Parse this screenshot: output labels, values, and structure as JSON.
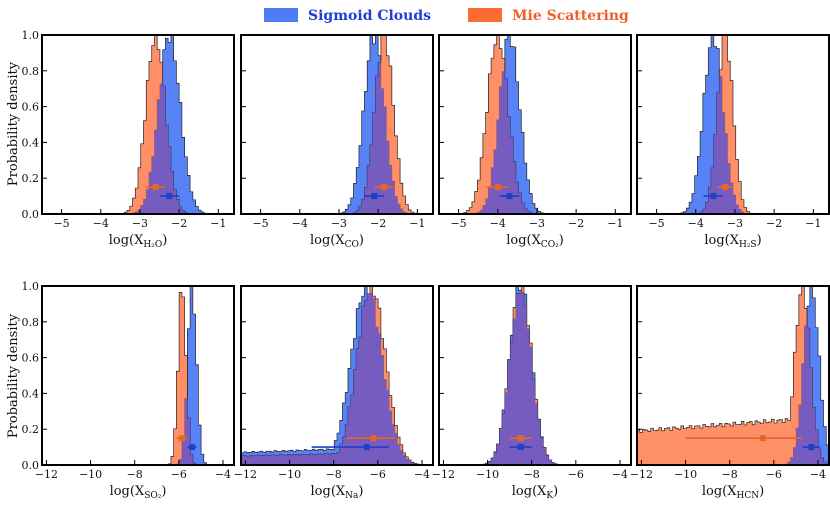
{
  "legend": {
    "sigmoid_label": "Sigmoid Clouds",
    "mie_label": "Mie Scattering",
    "sigmoid_color": "#4e7cf6",
    "mie_color": "#ff6a33",
    "sigmoid_marker_color": "#1f3fc8",
    "mie_marker_color": "#e8652a"
  },
  "ylabel": "Probability density",
  "chart_data": [
    {
      "type": "histogram",
      "row": 0,
      "col": 0,
      "xlabel_base": "log(X",
      "xlabel_sub": "H₂O",
      "xlabel_end": ")",
      "xlim": [
        -5.5,
        -0.6
      ],
      "xticks": [
        -5,
        -4,
        -3,
        -2,
        -1
      ],
      "ylim": [
        0,
        1.0
      ],
      "sigmoid": {
        "median": -2.25,
        "err": 0.25,
        "hist_mean": -2.25,
        "hist_sd": 0.28,
        "marker_y": 0.1
      },
      "mie": {
        "median": -2.6,
        "err": 0.25,
        "hist_mean": -2.6,
        "hist_sd": 0.25,
        "marker_y": 0.15
      }
    },
    {
      "type": "histogram",
      "row": 0,
      "col": 1,
      "xlabel_base": "log(X",
      "xlabel_sub": "CO",
      "xlabel_end": ")",
      "xlim": [
        -5.5,
        -0.6
      ],
      "xticks": [
        -5,
        -4,
        -3,
        -2,
        -1
      ],
      "ylim": [
        0,
        1.0
      ],
      "sigmoid": {
        "median": -2.1,
        "err": 0.25,
        "hist_mean": -2.1,
        "hist_sd": 0.26,
        "marker_y": 0.1
      },
      "mie": {
        "median": -1.85,
        "err": 0.25,
        "hist_mean": -1.85,
        "hist_sd": 0.24,
        "marker_y": 0.15
      }
    },
    {
      "type": "histogram",
      "row": 0,
      "col": 2,
      "xlabel_base": "log(X",
      "xlabel_sub": "CO₂",
      "xlabel_end": ")",
      "xlim": [
        -5.5,
        -0.6
      ],
      "xticks": [
        -5,
        -4,
        -3,
        -2,
        -1
      ],
      "ylim": [
        0,
        1.0
      ],
      "sigmoid": {
        "median": -3.7,
        "err": 0.25,
        "hist_mean": -3.7,
        "hist_sd": 0.26,
        "marker_y": 0.1
      },
      "mie": {
        "median": -4.0,
        "err": 0.28,
        "hist_mean": -4.0,
        "hist_sd": 0.27,
        "marker_y": 0.15
      }
    },
    {
      "type": "histogram",
      "row": 0,
      "col": 3,
      "xlabel_base": "log(X",
      "xlabel_sub": "H₂S",
      "xlabel_end": ")",
      "xlim": [
        -5.5,
        -0.6
      ],
      "xticks": [
        -5,
        -4,
        -3,
        -2,
        -1
      ],
      "ylim": [
        0,
        1.0
      ],
      "sigmoid": {
        "median": -3.55,
        "err": 0.25,
        "hist_mean": -3.55,
        "hist_sd": 0.25,
        "marker_y": 0.1
      },
      "mie": {
        "median": -3.25,
        "err": 0.2,
        "hist_mean": -3.25,
        "hist_sd": 0.2,
        "marker_y": 0.15
      }
    },
    {
      "type": "histogram",
      "row": 1,
      "col": 0,
      "xlabel_base": "log(X",
      "xlabel_sub": "SO₂",
      "xlabel_end": ")",
      "xlim": [
        -12.2,
        -3.5
      ],
      "xticks": [
        -12,
        -10,
        -8,
        -6,
        -4
      ],
      "ylim": [
        0,
        1.0
      ],
      "sigmoid": {
        "median": -5.4,
        "err": 0.2,
        "hist_mean": -5.4,
        "hist_sd": 0.2,
        "marker_y": 0.1
      },
      "mie": {
        "median": -5.85,
        "err": 0.25,
        "hist_mean": -5.85,
        "hist_sd": 0.18,
        "marker_y": 0.15
      }
    },
    {
      "type": "histogram",
      "row": 1,
      "col": 1,
      "xlabel_base": "log(X",
      "xlabel_sub": "Na",
      "xlabel_end": ")",
      "xlim": [
        -12.2,
        -3.5
      ],
      "xticks": [
        -12,
        -10,
        -8,
        -6,
        -4
      ],
      "ylim": [
        0,
        1.0
      ],
      "sigmoid": {
        "median": -6.5,
        "err_lo": 2.5,
        "err_hi": 1.0,
        "hist_mean": -6.5,
        "hist_sd": 0.7,
        "tail": 0.07,
        "tail_start": -12.2,
        "marker_y": 0.1
      },
      "mie": {
        "median": -6.2,
        "err_lo": 1.2,
        "err_hi": 1.0,
        "hist_mean": -6.3,
        "hist_sd": 0.65,
        "tail": 0.05,
        "tail_start": -12.2,
        "marker_y": 0.15
      }
    },
    {
      "type": "histogram",
      "row": 1,
      "col": 2,
      "xlabel_base": "log(X",
      "xlabel_sub": "K",
      "xlabel_end": ")",
      "xlim": [
        -12.2,
        -3.5
      ],
      "xticks": [
        -12,
        -10,
        -8,
        -6,
        -4
      ],
      "ylim": [
        0,
        1.0
      ],
      "sigmoid": {
        "median": -8.5,
        "err": 0.5,
        "hist_mean": -8.5,
        "hist_sd": 0.5,
        "marker_y": 0.1
      },
      "mie": {
        "median": -8.5,
        "err": 0.5,
        "hist_mean": -8.5,
        "hist_sd": 0.5,
        "marker_y": 0.15
      }
    },
    {
      "type": "histogram",
      "row": 1,
      "col": 3,
      "xlabel_base": "log(X",
      "xlabel_sub": "HCN",
      "xlabel_end": ")",
      "xlim": [
        -12.2,
        -3.5
      ],
      "xticks": [
        -12,
        -10,
        -8,
        -6,
        -4
      ],
      "ylim": [
        0,
        1.0
      ],
      "sigmoid": {
        "median": -4.3,
        "err": 0.4,
        "hist_mean": -4.3,
        "hist_sd": 0.35,
        "marker_y": 0.1
      },
      "mie": {
        "median": -6.5,
        "err_lo": 3.5,
        "err_hi": 1.8,
        "hist_mean": -4.7,
        "hist_sd": 0.35,
        "tail": 0.19,
        "tail_start": -12.2,
        "marker_y": 0.15
      }
    }
  ],
  "yticks": [
    "0.0",
    "0.2",
    "0.4",
    "0.6",
    "0.8",
    "1.0"
  ]
}
